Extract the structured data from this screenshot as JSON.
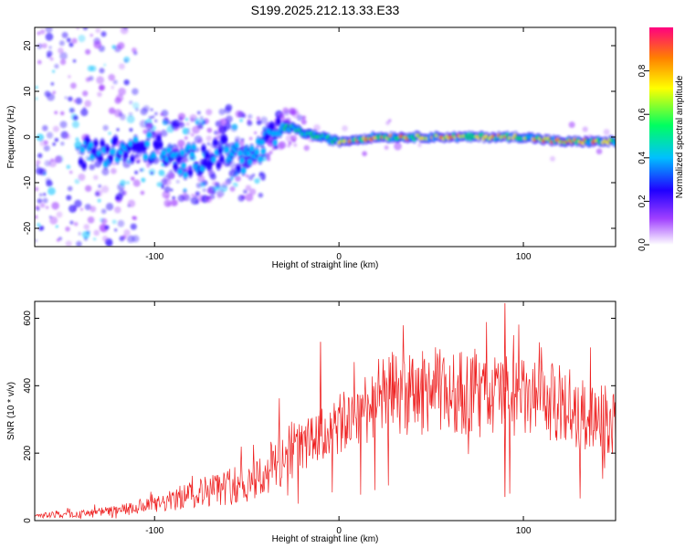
{
  "title": "S199.2025.212.13.33.E33",
  "chart_data": [
    {
      "type": "heatmap",
      "xlabel": "Height of straight line (km)",
      "ylabel": "Frequency (Hz)",
      "xlim": [
        -165,
        150
      ],
      "ylim": [
        -24,
        24
      ],
      "xticks": [
        -100,
        0,
        100
      ],
      "yticks": [
        -20,
        -10,
        0,
        10,
        20
      ],
      "grid": false,
      "ridge": {
        "description_points_x": [
          -165,
          -150,
          -130,
          -110,
          -100,
          -90,
          -80,
          -70,
          -60,
          -50,
          -40,
          -35,
          -30,
          -25,
          -20,
          -10,
          0,
          20,
          40,
          60,
          80,
          100,
          120,
          150
        ],
        "frequency_hz": [
          -4,
          -4,
          -3,
          -3,
          -2,
          -6,
          -5,
          -4,
          -3,
          -5,
          -2,
          0,
          2,
          2,
          1,
          0,
          -1,
          0,
          0,
          0,
          0,
          0,
          -1,
          -1
        ]
      },
      "colorbar": {
        "label": "Normalized spectral amplitude",
        "range": [
          0,
          1
        ],
        "ticks": [
          "0.0",
          "0.2",
          "0.4",
          "0.6",
          "0.8"
        ],
        "colors": [
          "#ffffff",
          "#a040ff",
          "#2000ff",
          "#00c0ff",
          "#00ff60",
          "#ffff00",
          "#ff8000",
          "#ff0080"
        ]
      }
    },
    {
      "type": "line",
      "xlabel": "Height of straight line (km)",
      "ylabel": "SNR (10 * v/v)",
      "xlim": [
        -165,
        150
      ],
      "ylim": [
        0,
        650
      ],
      "xticks": [
        -100,
        0,
        100
      ],
      "yticks": [
        0,
        200,
        400,
        600
      ],
      "series": [
        {
          "color": "#ee2020",
          "envelope_x": [
            -165,
            -140,
            -120,
            -100,
            -90,
            -80,
            -70,
            -60,
            -50,
            -40,
            -30,
            -25,
            -20,
            -10,
            0,
            10,
            20,
            30,
            40,
            50,
            60,
            70,
            80,
            90,
            100,
            110,
            120,
            130,
            140,
            150
          ],
          "envelope_y": [
            15,
            20,
            30,
            45,
            60,
            80,
            90,
            100,
            110,
            140,
            190,
            230,
            220,
            250,
            280,
            320,
            360,
            380,
            370,
            390,
            380,
            380,
            370,
            380,
            360,
            350,
            350,
            300,
            320,
            280
          ],
          "peaks": [
            {
              "x": -10,
              "y": 530
            },
            {
              "x": 40,
              "y": 480
            },
            {
              "x": 90,
              "y": 645
            },
            {
              "x": 90,
              "y": 70
            }
          ]
        }
      ]
    }
  ]
}
